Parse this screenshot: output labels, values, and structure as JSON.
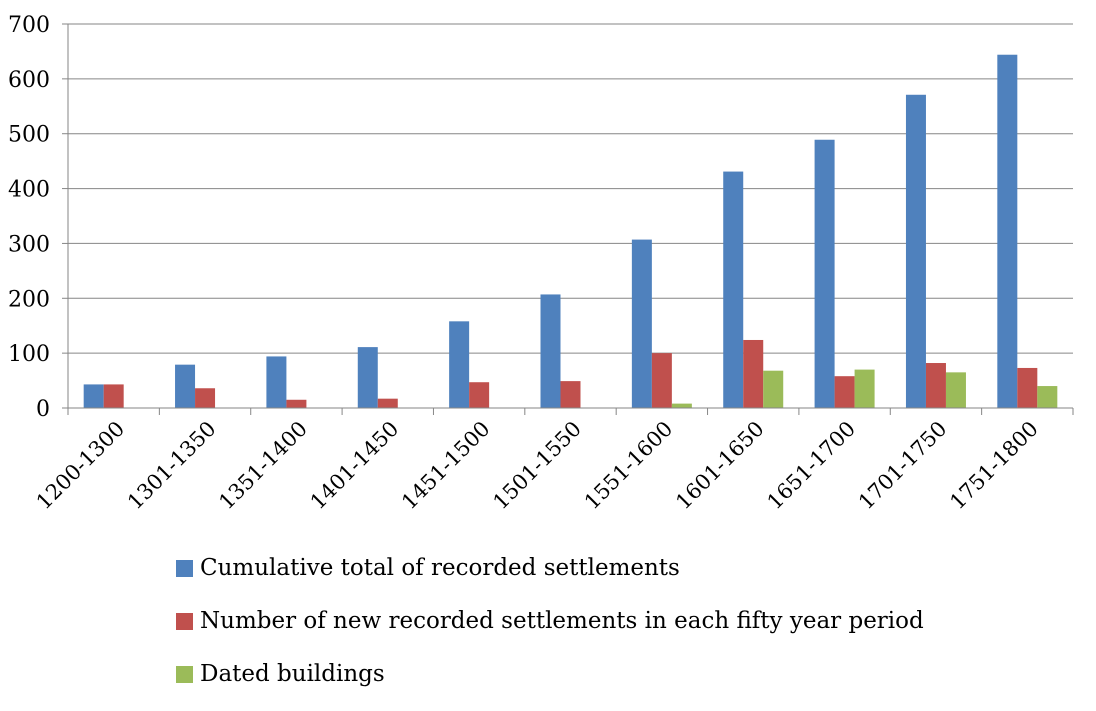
{
  "chart_data": {
    "type": "bar",
    "categories": [
      "1200-1300",
      "1301-1350",
      "1351-1400",
      "1401-1450",
      "1451-1500",
      "1501-1550",
      "1551-1600",
      "1601-1650",
      "1651-1700",
      "1701-1750",
      "1751-1800"
    ],
    "series": [
      {
        "name": "Cumulative total of recorded settlements",
        "color": "#4F81BD",
        "values": [
          43,
          79,
          94,
          111,
          158,
          207,
          307,
          431,
          489,
          571,
          644
        ]
      },
      {
        "name": "Number of new recorded settlements in each fifty year period",
        "color": "#C0504D",
        "values": [
          43,
          36,
          15,
          17,
          47,
          49,
          100,
          124,
          58,
          82,
          73
        ]
      },
      {
        "name": "Dated buildings",
        "color": "#9BBB59",
        "values": [
          0,
          0,
          0,
          0,
          0,
          0,
          8,
          68,
          70,
          65,
          40
        ]
      }
    ],
    "yticks": [
      "0",
      "100",
      "200",
      "300",
      "400",
      "500",
      "600",
      "700"
    ],
    "ylim": [
      0,
      700
    ],
    "grid": true,
    "legend": "bottom"
  }
}
